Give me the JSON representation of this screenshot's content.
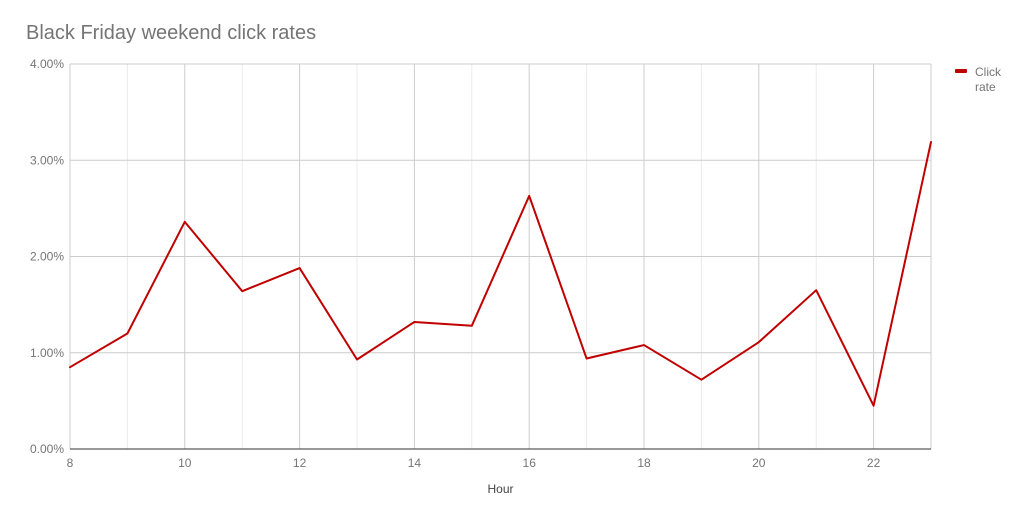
{
  "chart_data": {
    "type": "line",
    "title": "Black Friday weekend click rates",
    "xlabel": "Hour",
    "ylabel": "",
    "x": [
      8,
      9,
      10,
      11,
      12,
      13,
      14,
      15,
      16,
      17,
      18,
      19,
      20,
      21,
      22,
      23
    ],
    "x_ticks": [
      "8",
      "10",
      "12",
      "14",
      "16",
      "18",
      "20",
      "22"
    ],
    "x_tick_values": [
      8,
      10,
      12,
      14,
      16,
      18,
      20,
      22
    ],
    "xlim": [
      8,
      23
    ],
    "y_ticks": [
      "0.00%",
      "1.00%",
      "2.00%",
      "3.00%",
      "4.00%"
    ],
    "y_tick_values": [
      0,
      0.01,
      0.02,
      0.03,
      0.04
    ],
    "ylim": [
      0,
      0.04
    ],
    "grid": true,
    "legend_position": "right",
    "series": [
      {
        "name": "Click rate",
        "legend_lines": [
          "Click",
          "rate"
        ],
        "color": "#c00000",
        "values": [
          0.0085,
          0.012,
          0.0236,
          0.0164,
          0.0188,
          0.0093,
          0.0132,
          0.0128,
          0.0263,
          0.0094,
          0.0108,
          0.0072,
          0.0111,
          0.0165,
          0.0045,
          0.0319
        ]
      }
    ]
  }
}
